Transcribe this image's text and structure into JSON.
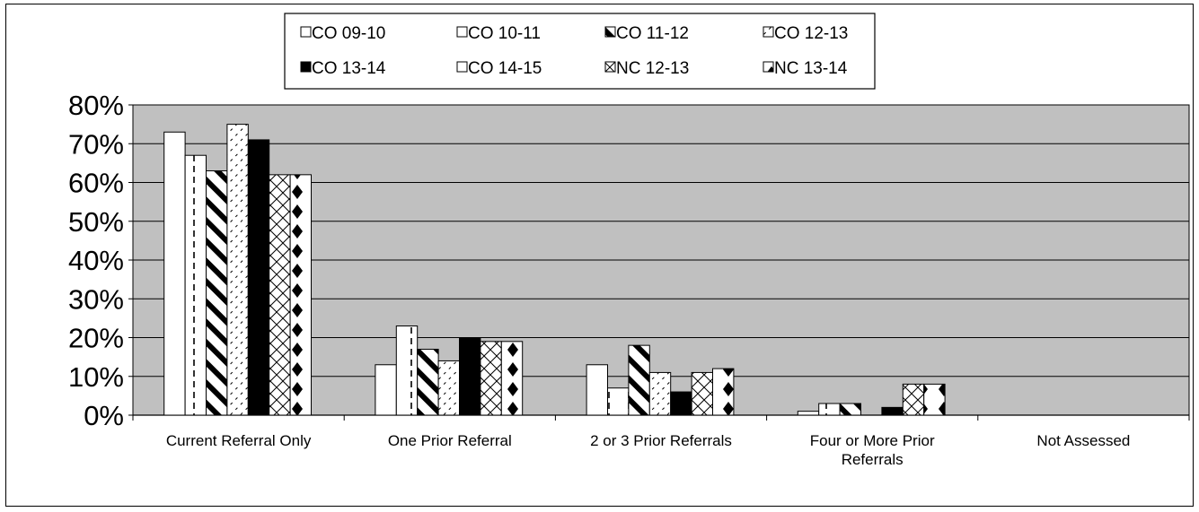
{
  "chart_data": {
    "type": "bar",
    "categories": [
      "Current Referral Only",
      "One Prior Referral",
      "2 or 3 Prior Referrals",
      "Four or More Prior Referrals",
      "Not Assessed"
    ],
    "category_label_lines": [
      [
        "Current Referral Only"
      ],
      [
        "One Prior Referral"
      ],
      [
        "2 or 3 Prior Referrals"
      ],
      [
        "Four or More Prior",
        "Referrals"
      ],
      [
        "Not Assessed"
      ]
    ],
    "series": [
      {
        "name": "CO 09-10",
        "values": [
          73,
          13,
          13,
          1,
          0
        ]
      },
      {
        "name": "CO 10-11",
        "values": [
          67,
          23,
          7,
          3,
          0
        ]
      },
      {
        "name": "CO 11-12",
        "values": [
          63,
          17,
          18,
          3,
          0
        ]
      },
      {
        "name": "CO 12-13",
        "values": [
          75,
          14,
          11,
          0,
          0
        ]
      },
      {
        "name": "CO 13-14",
        "values": [
          71,
          20,
          6,
          2,
          0
        ]
      },
      {
        "name": "CO 14-15",
        "values": [
          0,
          0,
          0,
          0,
          0
        ]
      },
      {
        "name": "NC 12-13",
        "values": [
          62,
          19,
          11,
          8,
          0
        ]
      },
      {
        "name": "NC 13-14",
        "values": [
          62,
          19,
          12,
          8,
          0
        ]
      }
    ],
    "ylim": [
      0,
      80
    ],
    "yticks": [
      0,
      10,
      20,
      30,
      40,
      50,
      60,
      70,
      80
    ],
    "ytick_suffix": "%",
    "grid": true,
    "plot_background": "#c0c0c0",
    "legend_position": "top-center",
    "legend_rows": 2,
    "series_patterns": [
      "white",
      "vertical-dashes",
      "wide-downward-diagonal",
      "light-upward-diagonal",
      "solid-black",
      "white",
      "diagonal-crosshatch",
      "diamonds"
    ]
  }
}
